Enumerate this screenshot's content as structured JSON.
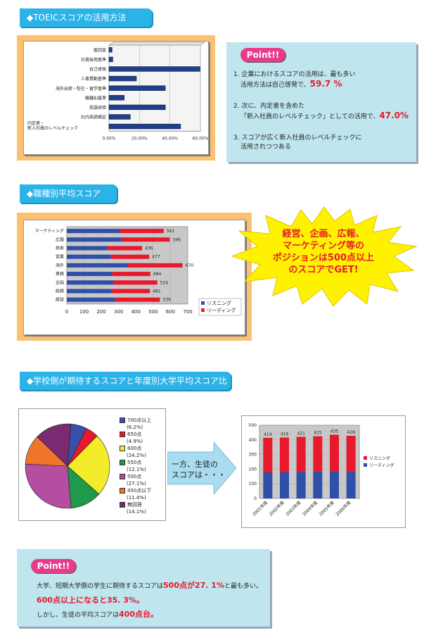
{
  "section1": {
    "header": "◆TOEICスコアの活用方法",
    "chart": {
      "type": "bar",
      "categories": [
        "無回答",
        "社員採用基準",
        "自己啓発",
        "人事異動基準",
        "海外出張・駐在・留学基準",
        "職種別基準",
        "英語研修",
        "社内英語検定",
        "内定者・新入社員のレベルチェック"
      ],
      "values": [
        2.0,
        2.5,
        59.7,
        18.0,
        37.0,
        10.0,
        37.0,
        14.0,
        47.0
      ],
      "ticks": [
        "0.00%",
        "20.00%",
        "40.00%",
        "60.00%"
      ],
      "xlim": [
        0,
        60
      ]
    },
    "point": {
      "tag": "Point!!",
      "items": [
        {
          "text": "1. 企業におけるスコアの活用は、最も多い",
          "text2": "活用方法は自己啓発で、",
          "hl": "59.7 %",
          "tail": ""
        },
        {
          "text": "2. 次に、内定者を含めた",
          "text2": "「新入社員のレベルチェック」としての活用で、",
          "hl": "47.0%",
          "tail": ""
        },
        {
          "text": "3. スコアが広く新入社員のレベルチェックに",
          "text2": "活用されつつある",
          "hl": "",
          "tail": ""
        }
      ]
    }
  },
  "section2": {
    "header": "◆職種別平均スコア",
    "chart": {
      "type": "bar",
      "categories": [
        "マーケティング",
        "広報",
        "技術",
        "営業",
        "海外",
        "事務",
        "企画",
        "総務",
        "経営"
      ],
      "series": [
        {
          "name": "リスニング",
          "values": [
            305,
            320,
            235,
            255,
            350,
            262,
            272,
            258,
            280
          ]
        },
        {
          "name": "リーディング",
          "values": [
            256,
            276,
            201,
            222,
            320,
            222,
            252,
            223,
            259
          ]
        }
      ],
      "totals": [
        "561",
        "596",
        "436",
        "477",
        "670",
        "484",
        "524",
        "481",
        "539"
      ],
      "xlim": [
        0,
        700
      ],
      "ticks": [
        "0",
        "100",
        "200",
        "300",
        "400",
        "500",
        "600",
        "700"
      ]
    },
    "burst": [
      "経営、企画、広報、",
      "マーケティング等の",
      "ポジションは500点以上",
      "のスコアでGET!"
    ]
  },
  "section3": {
    "header": "◆学校側が期待するスコアと年度別大学平均スコア比較",
    "pie": {
      "type": "pie",
      "slices": [
        {
          "label": "700点以上",
          "pct": "(6.2%)",
          "value": 6.2,
          "color": "#3a4fa8"
        },
        {
          "label": "650点",
          "pct": "(4.9%)",
          "value": 4.9,
          "color": "#e8192c"
        },
        {
          "label": "600点",
          "pct": "(24.2%)",
          "value": 24.2,
          "color": "#f4ec2a"
        },
        {
          "label": "550点",
          "pct": "(12.1%)",
          "value": 12.1,
          "color": "#1f9a4a"
        },
        {
          "label": "500点",
          "pct": "(27.1%)",
          "value": 27.1,
          "color": "#b54da0"
        },
        {
          "label": "450点以下",
          "pct": "(11.4%)",
          "value": 11.4,
          "color": "#f0762a"
        },
        {
          "label": "無回答",
          "pct": "(14.1%)",
          "value": 14.1,
          "color": "#7a2a70"
        }
      ]
    },
    "arrow": [
      "一方、生徒の",
      "スコアは・・・"
    ],
    "stack": {
      "type": "bar",
      "categories": [
        "2001年度",
        "2002年度",
        "2003年度",
        "2004年度",
        "2005年度",
        "2006年度"
      ],
      "series": [
        {
          "name": "リスニング",
          "values": [
            236,
            236,
            240,
            242,
            248,
            246
          ],
          "color": "#e8192c"
        },
        {
          "name": "リーディング",
          "values": [
            178,
            180,
            181,
            183,
            187,
            182
          ],
          "color": "#2f4fa8"
        }
      ],
      "totals": [
        "414",
        "416",
        "421",
        "425",
        "435",
        "428"
      ],
      "ylim": [
        0,
        500
      ],
      "ticks": [
        "0",
        "100",
        "200",
        "300",
        "400",
        "500"
      ]
    }
  },
  "point2": {
    "tag": "Point!!",
    "line1a": "大学、短期大学側の学生に期待するスコアは",
    "line1b": "500点が27. 1%",
    "line1c": "と最も多い。",
    "line2": "600点以上になると35. 3%。",
    "line3a": "しかし、生徒の平均スコアは",
    "line3b": "400点台。"
  }
}
